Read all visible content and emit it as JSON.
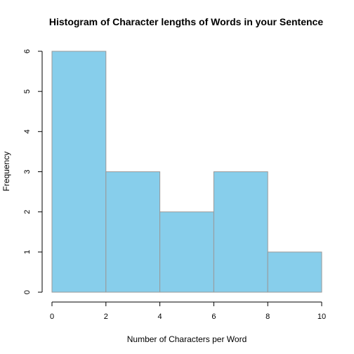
{
  "colors": {
    "bar_fill": "#87CEEB",
    "bar_stroke": "#999999"
  },
  "chart_data": {
    "type": "bar",
    "title": "Histogram of Character lengths of Words in your Sentence",
    "xlabel": "Number of Characters per Word",
    "ylabel": "Frequency",
    "bins": [
      {
        "from": 0,
        "to": 2,
        "value": 6
      },
      {
        "from": 2,
        "to": 4,
        "value": 3
      },
      {
        "from": 4,
        "to": 6,
        "value": 2
      },
      {
        "from": 6,
        "to": 8,
        "value": 3
      },
      {
        "from": 8,
        "to": 10,
        "value": 1
      }
    ],
    "xlim": [
      0,
      10
    ],
    "ylim": [
      0,
      6
    ],
    "xticks": [
      0,
      2,
      4,
      6,
      8,
      10
    ],
    "yticks": [
      0,
      1,
      2,
      3,
      4,
      5,
      6
    ],
    "grid": false,
    "legend": "none"
  }
}
